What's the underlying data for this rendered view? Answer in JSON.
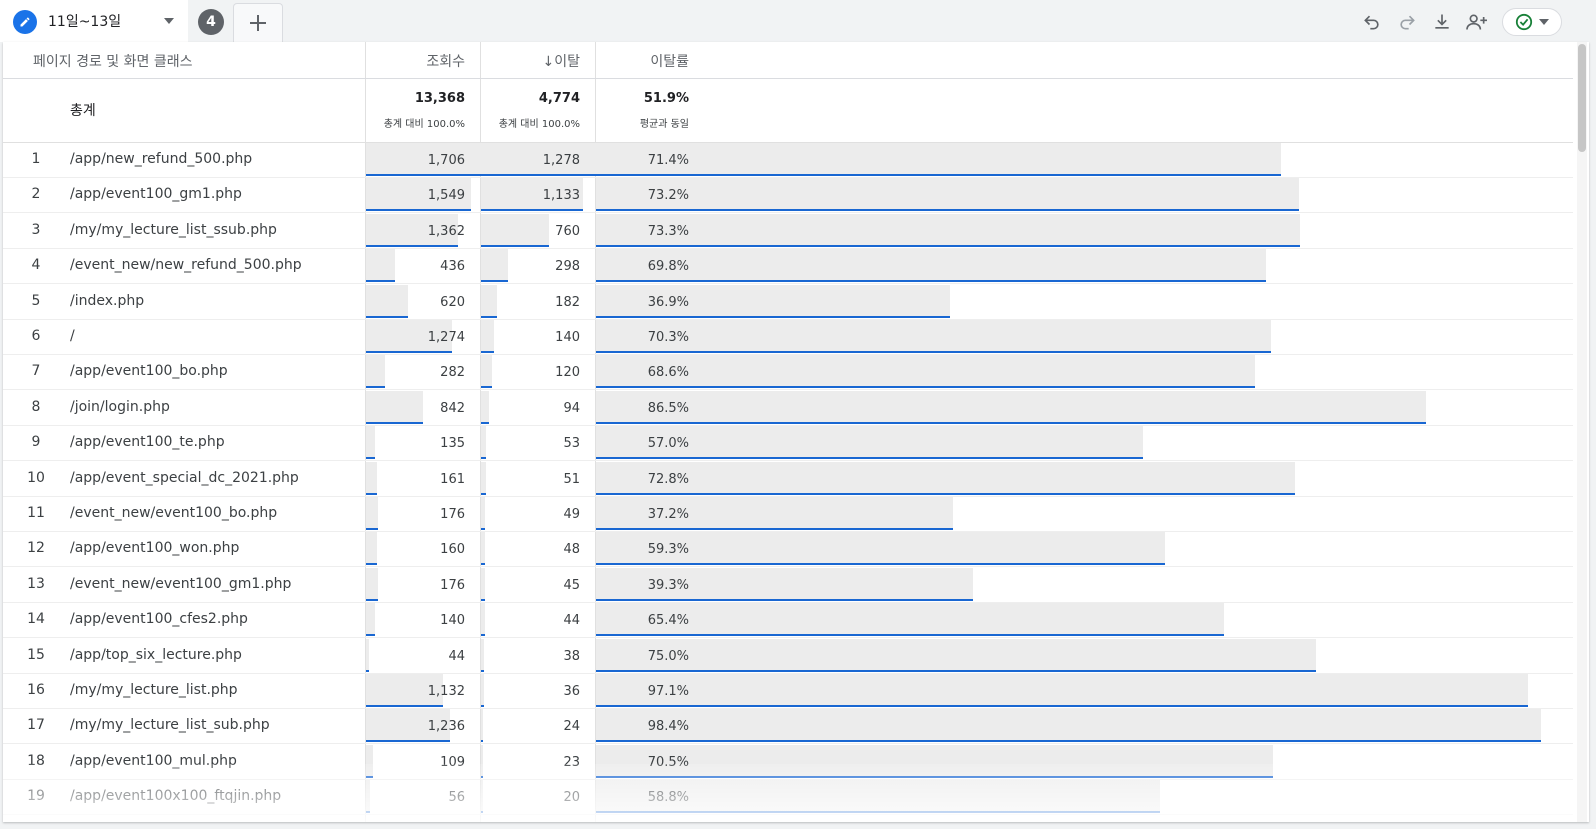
{
  "tab": {
    "label": "11일~13일",
    "count": "4"
  },
  "icons": {
    "edit": "pencil-icon",
    "dropdown": "caret-down-icon",
    "add": "plus-icon",
    "undo": "undo-icon",
    "redo": "redo-icon",
    "download": "download-icon",
    "share": "add-user-icon",
    "status": "check-circle-icon",
    "status_menu": "caret-down-icon"
  },
  "colors": {
    "accent": "#1a73e8",
    "bar": "#ececec",
    "bar_line": "#1967d2",
    "status": "#188038"
  },
  "table": {
    "headers": {
      "path": "페이지 경로 및 화면 클래스",
      "views": "조회수",
      "exits": "↓이탈",
      "exit_rate": "이탈률"
    },
    "totals": {
      "label": "총계",
      "views": "13,368",
      "views_sub": "총계 대비 100.0%",
      "exits": "4,774",
      "exits_sub": "총계 대비 100.0%",
      "exit_rate": "51.9%",
      "exit_rate_sub": "평균과 동일"
    },
    "rows": [
      {
        "idx": "1",
        "path": "/app/new_refund_500.php",
        "views": 1706,
        "views_text": "1,706",
        "exits": 1278,
        "exits_text": "1,278",
        "rate": 71.4,
        "rate_text": "71.4%"
      },
      {
        "idx": "2",
        "path": "/app/event100_gm1.php",
        "views": 1549,
        "views_text": "1,549",
        "exits": 1133,
        "exits_text": "1,133",
        "rate": 73.2,
        "rate_text": "73.2%"
      },
      {
        "idx": "3",
        "path": "/my/my_lecture_list_ssub.php",
        "views": 1362,
        "views_text": "1,362",
        "exits": 760,
        "exits_text": "760",
        "rate": 73.3,
        "rate_text": "73.3%"
      },
      {
        "idx": "4",
        "path": "/event_new/new_refund_500.php",
        "views": 436,
        "views_text": "436",
        "exits": 298,
        "exits_text": "298",
        "rate": 69.8,
        "rate_text": "69.8%"
      },
      {
        "idx": "5",
        "path": "/index.php",
        "views": 620,
        "views_text": "620",
        "exits": 182,
        "exits_text": "182",
        "rate": 36.9,
        "rate_text": "36.9%"
      },
      {
        "idx": "6",
        "path": "/",
        "views": 1274,
        "views_text": "1,274",
        "exits": 140,
        "exits_text": "140",
        "rate": 70.3,
        "rate_text": "70.3%"
      },
      {
        "idx": "7",
        "path": "/app/event100_bo.php",
        "views": 282,
        "views_text": "282",
        "exits": 120,
        "exits_text": "120",
        "rate": 68.6,
        "rate_text": "68.6%"
      },
      {
        "idx": "8",
        "path": "/join/login.php",
        "views": 842,
        "views_text": "842",
        "exits": 94,
        "exits_text": "94",
        "rate": 86.5,
        "rate_text": "86.5%"
      },
      {
        "idx": "9",
        "path": "/app/event100_te.php",
        "views": 135,
        "views_text": "135",
        "exits": 53,
        "exits_text": "53",
        "rate": 57.0,
        "rate_text": "57.0%"
      },
      {
        "idx": "10",
        "path": "/app/event_special_dc_2021.php",
        "views": 161,
        "views_text": "161",
        "exits": 51,
        "exits_text": "51",
        "rate": 72.8,
        "rate_text": "72.8%"
      },
      {
        "idx": "11",
        "path": "/event_new/event100_bo.php",
        "views": 176,
        "views_text": "176",
        "exits": 49,
        "exits_text": "49",
        "rate": 37.2,
        "rate_text": "37.2%"
      },
      {
        "idx": "12",
        "path": "/app/event100_won.php",
        "views": 160,
        "views_text": "160",
        "exits": 48,
        "exits_text": "48",
        "rate": 59.3,
        "rate_text": "59.3%"
      },
      {
        "idx": "13",
        "path": "/event_new/event100_gm1.php",
        "views": 176,
        "views_text": "176",
        "exits": 45,
        "exits_text": "45",
        "rate": 39.3,
        "rate_text": "39.3%"
      },
      {
        "idx": "14",
        "path": "/app/event100_cfes2.php",
        "views": 140,
        "views_text": "140",
        "exits": 44,
        "exits_text": "44",
        "rate": 65.4,
        "rate_text": "65.4%"
      },
      {
        "idx": "15",
        "path": "/app/top_six_lecture.php",
        "views": 44,
        "views_text": "44",
        "exits": 38,
        "exits_text": "38",
        "rate": 75.0,
        "rate_text": "75.0%"
      },
      {
        "idx": "16",
        "path": "/my/my_lecture_list.php",
        "views": 1132,
        "views_text": "1,132",
        "exits": 36,
        "exits_text": "36",
        "rate": 97.1,
        "rate_text": "97.1%"
      },
      {
        "idx": "17",
        "path": "/my/my_lecture_list_sub.php",
        "views": 1236,
        "views_text": "1,236",
        "exits": 24,
        "exits_text": "24",
        "rate": 98.4,
        "rate_text": "98.4%"
      },
      {
        "idx": "18",
        "path": "/app/event100_mul.php",
        "views": 109,
        "views_text": "109",
        "exits": 23,
        "exits_text": "23",
        "rate": 70.5,
        "rate_text": "70.5%"
      },
      {
        "idx": "19",
        "path": "/app/event100x100_ftqjin.php",
        "views": 56,
        "views_text": "56",
        "exits": 20,
        "exits_text": "20",
        "rate": 58.8,
        "rate_text": "58.8%"
      }
    ]
  }
}
